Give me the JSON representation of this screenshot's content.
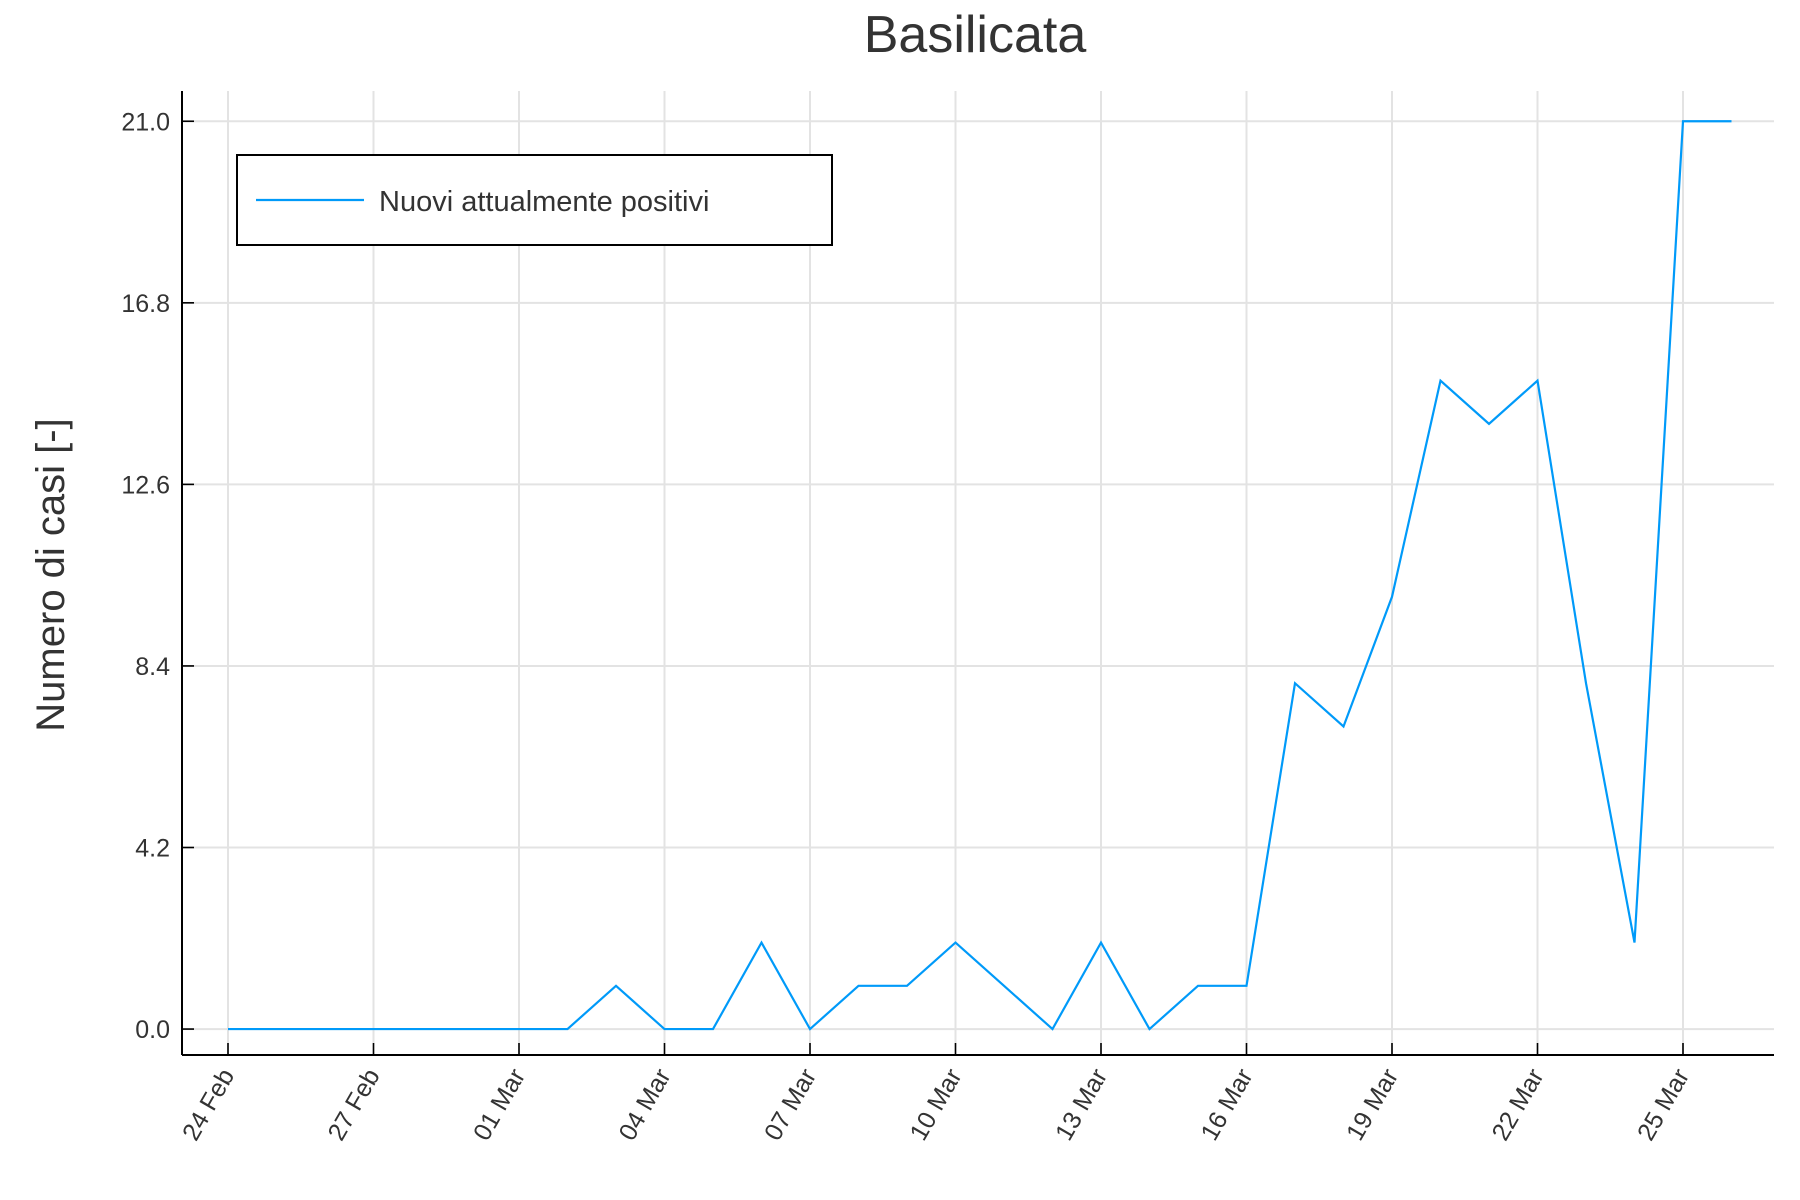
{
  "chart_data": {
    "type": "line",
    "title": "Basilicata",
    "xlabel": "",
    "ylabel": "Numero di casi [-]",
    "x": [
      "24 Feb",
      "25 Feb",
      "26 Feb",
      "27 Feb",
      "28 Feb",
      "29 Feb",
      "01 Mar",
      "02 Mar",
      "03 Mar",
      "04 Mar",
      "05 Mar",
      "06 Mar",
      "07 Mar",
      "08 Mar",
      "09 Mar",
      "10 Mar",
      "11 Mar",
      "12 Mar",
      "13 Mar",
      "14 Mar",
      "15 Mar",
      "16 Mar",
      "17 Mar",
      "18 Mar",
      "19 Mar",
      "20 Mar",
      "21 Mar",
      "22 Mar",
      "23 Mar",
      "24 Mar",
      "25 Mar",
      "26 Mar"
    ],
    "x_ticks": [
      "24 Feb",
      "27 Feb",
      "01 Mar",
      "04 Mar",
      "07 Mar",
      "10 Mar",
      "13 Mar",
      "16 Mar",
      "19 Mar",
      "22 Mar",
      "25 Mar"
    ],
    "y_ticks": [
      "0.0",
      "4.2",
      "8.4",
      "12.6",
      "16.8",
      "21.0"
    ],
    "ylim": [
      -0.6,
      21.7
    ],
    "grid": true,
    "legend_position": "top-left",
    "series": [
      {
        "name": "Nuovi attualmente positivi",
        "color": "#009af9",
        "values": [
          0,
          0,
          0,
          0,
          0,
          0,
          0,
          0,
          1,
          0,
          0,
          2,
          0,
          1,
          1,
          2,
          1,
          0,
          2,
          0,
          1,
          1,
          8,
          7,
          10,
          15,
          14,
          15,
          8,
          2,
          21,
          21
        ]
      }
    ]
  }
}
